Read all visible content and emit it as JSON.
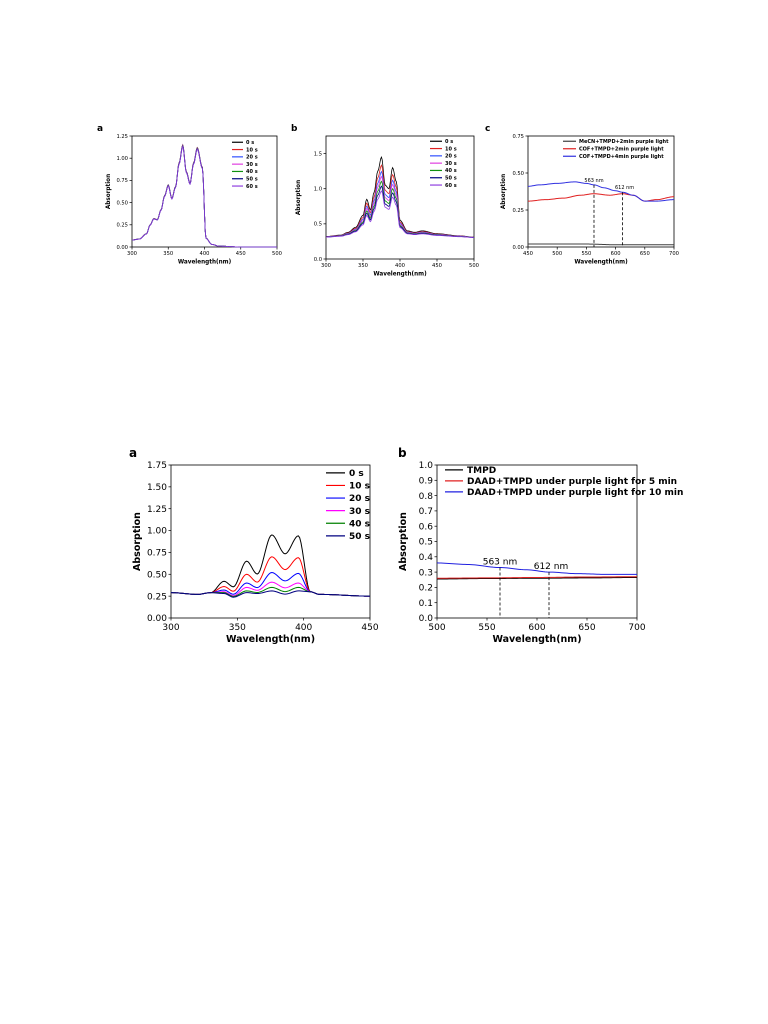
{
  "chart_data": [
    {
      "panel": "a",
      "type": "line",
      "xlabel": "Wavelength(nm)",
      "ylabel": "Absorption",
      "xlim": [
        300,
        500
      ],
      "ylim": [
        0,
        1.25
      ],
      "xticks": [
        "300",
        "350",
        "400",
        "450",
        "500"
      ],
      "yticks": [
        "0.00",
        "0.25",
        "0.50",
        "0.75",
        "1.00",
        "1.25"
      ],
      "legend_position": "top-right",
      "series": [
        {
          "name": "0 s",
          "color": "#000000"
        },
        {
          "name": "10 s",
          "color": "#e02020"
        },
        {
          "name": "20 s",
          "color": "#3050ff"
        },
        {
          "name": "30 s",
          "color": "#e040e0"
        },
        {
          "name": "40 s",
          "color": "#109010"
        },
        {
          "name": "50 s",
          "color": "#000080"
        },
        {
          "name": "60 s",
          "color": "#9040e0"
        }
      ],
      "x": [
        300,
        310,
        320,
        325,
        330,
        335,
        340,
        345,
        350,
        355,
        360,
        365,
        370,
        375,
        380,
        385,
        390,
        397,
        402,
        410,
        420,
        450,
        500
      ],
      "curve": [
        0.08,
        0.09,
        0.15,
        0.25,
        0.32,
        0.31,
        0.42,
        0.58,
        0.7,
        0.55,
        0.68,
        0.95,
        1.15,
        0.85,
        0.72,
        0.95,
        1.12,
        0.9,
        0.1,
        0.03,
        0.01,
        0.0,
        0.0
      ]
    },
    {
      "panel": "b",
      "type": "line",
      "xlabel": "Wavelength(nm)",
      "ylabel": "Absorption",
      "xlim": [
        300,
        500
      ],
      "ylim": [
        0,
        1.75
      ],
      "xticks": [
        "300",
        "350",
        "400",
        "450",
        "500"
      ],
      "yticks": [
        "0.0",
        "0.5",
        "1.0",
        "1.5"
      ],
      "legend_position": "top-right",
      "series": [
        {
          "name": "0 s",
          "color": "#000000",
          "peak_scale": 1.0
        },
        {
          "name": "10 s",
          "color": "#e02020",
          "peak_scale": 0.9
        },
        {
          "name": "20 s",
          "color": "#3050ff",
          "peak_scale": 0.82
        },
        {
          "name": "30 s",
          "color": "#e040e0",
          "peak_scale": 0.76
        },
        {
          "name": "40 s",
          "color": "#109010",
          "peak_scale": 0.7
        },
        {
          "name": "50 s",
          "color": "#000080",
          "peak_scale": 0.64
        },
        {
          "name": "60 s",
          "color": "#9040e0",
          "peak_scale": 0.58
        }
      ],
      "x": [
        300,
        320,
        330,
        340,
        350,
        355,
        360,
        365,
        370,
        375,
        380,
        385,
        390,
        395,
        400,
        410,
        420,
        430,
        450,
        480,
        500
      ],
      "base": [
        0.32,
        0.34,
        0.38,
        0.45,
        0.62,
        0.85,
        0.7,
        0.95,
        1.25,
        1.45,
        1.05,
        1.0,
        1.3,
        1.1,
        0.55,
        0.4,
        0.38,
        0.4,
        0.36,
        0.33,
        0.31
      ]
    },
    {
      "panel": "c",
      "type": "line",
      "xlabel": "Wavelength(nm)",
      "ylabel": "Absorption",
      "xlim": [
        450,
        700
      ],
      "ylim": [
        0,
        0.75
      ],
      "xticks": [
        "450",
        "500",
        "550",
        "600",
        "650",
        "700"
      ],
      "yticks": [
        "0.00",
        "0.25",
        "0.50",
        "0.75"
      ],
      "legend_position": "top-right",
      "annotations": [
        "563 nm",
        "612 nm"
      ],
      "vlines": [
        563,
        612
      ],
      "series": [
        {
          "name": "MeCN+TMPD+2min purple light",
          "color": "#404040",
          "x": [
            450,
            500,
            550,
            600,
            650,
            700
          ],
          "y": [
            0.02,
            0.02,
            0.02,
            0.015,
            0.015,
            0.015
          ]
        },
        {
          "name": "COF+TMPD+2min purple light",
          "color": "#e02020",
          "x": [
            450,
            480,
            510,
            540,
            563,
            590,
            612,
            630,
            650,
            670,
            700
          ],
          "y": [
            0.31,
            0.32,
            0.33,
            0.35,
            0.36,
            0.35,
            0.36,
            0.35,
            0.31,
            0.32,
            0.34
          ]
        },
        {
          "name": "COF+TMPD+4min purple light",
          "color": "#3030e0",
          "x": [
            450,
            470,
            500,
            530,
            550,
            563,
            580,
            600,
            612,
            630,
            650,
            670,
            700
          ],
          "y": [
            0.41,
            0.42,
            0.43,
            0.44,
            0.43,
            0.42,
            0.4,
            0.38,
            0.37,
            0.35,
            0.31,
            0.31,
            0.32
          ]
        }
      ]
    },
    {
      "panel": "a",
      "type": "line",
      "xlabel": "Wavelength(nm)",
      "ylabel": "Absorption",
      "xlim": [
        300,
        450
      ],
      "ylim": [
        0,
        1.75
      ],
      "xticks": [
        "300",
        "350",
        "400",
        "450"
      ],
      "yticks": [
        "0.00",
        "0.25",
        "0.50",
        "0.75",
        "1.00",
        "1.25",
        "1.50",
        "1.75"
      ],
      "legend_position": "top-right",
      "series": [
        {
          "name": "0 s",
          "color": "#000000",
          "peaks": [
            0.42,
            0.65,
            0.95,
            0.94
          ]
        },
        {
          "name": "10 s",
          "color": "#ff0000",
          "peaks": [
            0.36,
            0.5,
            0.7,
            0.69
          ]
        },
        {
          "name": "20 s",
          "color": "#0000ff",
          "peaks": [
            0.32,
            0.4,
            0.52,
            0.51
          ]
        },
        {
          "name": "30 s",
          "color": "#ff00ff",
          "peaks": [
            0.3,
            0.35,
            0.41,
            0.4
          ]
        },
        {
          "name": "40 s",
          "color": "#008000",
          "peaks": [
            0.29,
            0.31,
            0.35,
            0.35
          ]
        },
        {
          "name": "50 s",
          "color": "#000080",
          "peaks": [
            0.28,
            0.29,
            0.31,
            0.31
          ]
        }
      ],
      "peak_x": [
        340,
        357,
        376,
        396
      ]
    },
    {
      "panel": "b",
      "type": "line",
      "xlabel": "Wavelength(nm)",
      "ylabel": "Absorption",
      "xlim": [
        500,
        700
      ],
      "ylim": [
        0,
        1.0
      ],
      "xticks": [
        "500",
        "550",
        "600",
        "650",
        "700"
      ],
      "yticks": [
        "0.0",
        "0.1",
        "0.2",
        "0.3",
        "0.4",
        "0.5",
        "0.6",
        "0.7",
        "0.8",
        "0.9",
        "1.0"
      ],
      "legend_position": "top-left",
      "annotations": [
        "563 nm",
        "612 nm"
      ],
      "vlines": [
        563,
        612
      ],
      "series": [
        {
          "name": "TMPD",
          "color": "#000000",
          "x": [
            500,
            550,
            600,
            650,
            700
          ],
          "y": [
            0.255,
            0.258,
            0.26,
            0.262,
            0.265
          ]
        },
        {
          "name": "DAAD+TMPD under purple light for 5 min",
          "color": "#e02020",
          "x": [
            500,
            550,
            600,
            650,
            700
          ],
          "y": [
            0.26,
            0.262,
            0.265,
            0.268,
            0.27
          ]
        },
        {
          "name": "DAAD+TMPD under purple light for 10 min",
          "color": "#2020e0",
          "x": [
            500,
            530,
            563,
            590,
            612,
            640,
            670,
            700
          ],
          "y": [
            0.36,
            0.35,
            0.33,
            0.315,
            0.3,
            0.29,
            0.285,
            0.285
          ]
        }
      ]
    }
  ]
}
